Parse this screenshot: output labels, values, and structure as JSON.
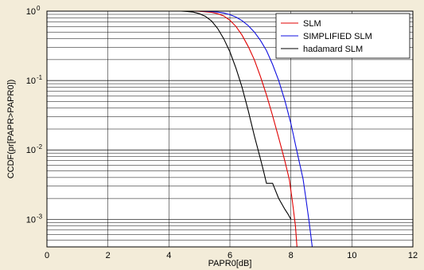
{
  "chart_data": {
    "type": "line",
    "title": "",
    "xlabel": "PAPR0[dB]",
    "ylabel": "CCDF(pr[PAPR>PAPR0])",
    "xlim": [
      0,
      12
    ],
    "ylim": [
      0.0004,
      1
    ],
    "yscale": "log",
    "grid": "major and minor",
    "legend_position": "top-right",
    "x_ticks": [
      "0",
      "2",
      "4",
      "6",
      "8",
      "10",
      "12"
    ],
    "y_ticks": [
      {
        "base": "10",
        "exp": "0",
        "value": 1
      },
      {
        "base": "10",
        "exp": "-1",
        "value": 0.1
      },
      {
        "base": "10",
        "exp": "-2",
        "value": 0.01
      },
      {
        "base": "10",
        "exp": "-3",
        "value": 0.001
      }
    ],
    "series": [
      {
        "name": "SLM",
        "color": "#e00000",
        "x": [
          0,
          4.8,
          5.0,
          5.2,
          5.4,
          5.6,
          5.8,
          6.0,
          6.2,
          6.4,
          6.6,
          6.8,
          7.0,
          7.2,
          7.4,
          7.6,
          7.8,
          7.95,
          8.05,
          8.15,
          8.2
        ],
        "y": [
          1,
          1,
          0.995,
          0.98,
          0.96,
          0.92,
          0.85,
          0.74,
          0.6,
          0.45,
          0.31,
          0.2,
          0.115,
          0.062,
          0.031,
          0.015,
          0.007,
          0.0037,
          0.0018,
          0.0008,
          0.0004
        ]
      },
      {
        "name": "SIMPLIFIED SLM",
        "color": "#1010e0",
        "x": [
          0,
          5.0,
          5.2,
          5.4,
          5.6,
          5.8,
          6.0,
          6.2,
          6.4,
          6.6,
          6.8,
          7.0,
          7.2,
          7.4,
          7.6,
          7.8,
          8.0,
          8.2,
          8.4,
          8.5,
          8.6,
          8.7
        ],
        "y": [
          1,
          1,
          0.995,
          0.985,
          0.97,
          0.94,
          0.89,
          0.82,
          0.73,
          0.62,
          0.5,
          0.38,
          0.27,
          0.17,
          0.1,
          0.052,
          0.024,
          0.0095,
          0.0038,
          0.0019,
          0.0009,
          0.0004
        ]
      },
      {
        "name": "hadamard SLM",
        "color": "#000000",
        "x": [
          0,
          4.4,
          4.6,
          4.8,
          5.0,
          5.2,
          5.4,
          5.6,
          5.8,
          6.0,
          6.2,
          6.4,
          6.6,
          6.8,
          7.0,
          7.1,
          7.2,
          7.4,
          7.6,
          7.8,
          7.9,
          8.0
        ],
        "y": [
          1,
          1,
          0.99,
          0.97,
          0.92,
          0.84,
          0.72,
          0.56,
          0.4,
          0.26,
          0.15,
          0.08,
          0.037,
          0.016,
          0.0075,
          0.005,
          0.0033,
          0.0033,
          0.002,
          0.0014,
          0.0012,
          0.001
        ]
      }
    ]
  }
}
